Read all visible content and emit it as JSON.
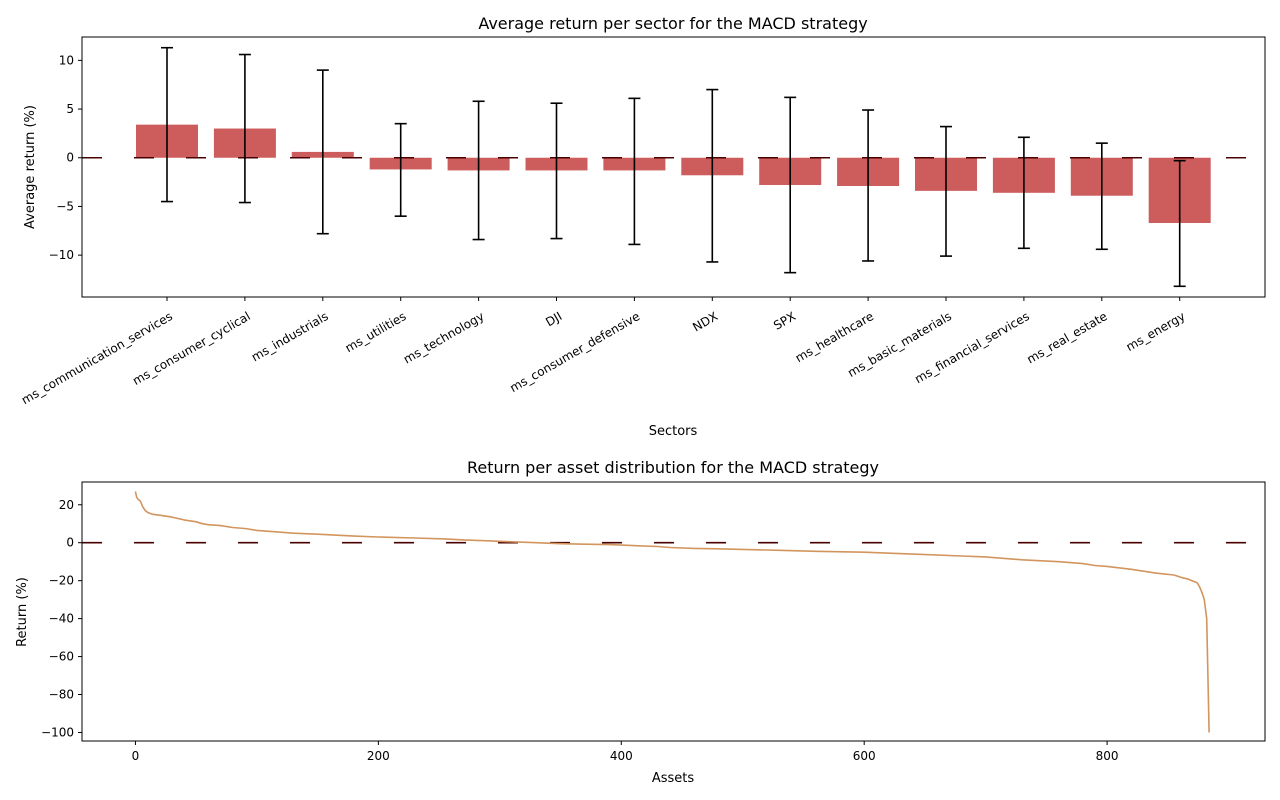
{
  "chart_data": [
    {
      "type": "bar",
      "title": "Average return per sector for the MACD strategy",
      "xlabel": "Sectors",
      "ylabel": "Average return (%)",
      "ylim": [
        -14.3,
        12.4
      ],
      "yticks": [
        -10,
        -5,
        0,
        5,
        10
      ],
      "categories": [
        "ms_communication_services",
        "ms_consumer_cyclical",
        "ms_industrials",
        "ms_utilities",
        "ms_technology",
        "DJI",
        "ms_consumer_defensive",
        "NDX",
        "SPX",
        "ms_healthcare",
        "ms_basic_materials",
        "ms_financial_services",
        "ms_real_estate",
        "ms_energy"
      ],
      "values": [
        3.4,
        3.0,
        0.6,
        -1.2,
        -1.3,
        -1.3,
        -1.3,
        -1.8,
        -2.8,
        -2.9,
        -3.4,
        -3.6,
        -3.9,
        -6.7
      ],
      "error_upper": [
        11.3,
        10.6,
        9.0,
        3.5,
        5.8,
        5.6,
        6.1,
        7.0,
        6.2,
        4.9,
        3.2,
        2.1,
        1.5,
        -0.3
      ],
      "error_lower": [
        -4.5,
        -4.6,
        -7.8,
        -6.0,
        -8.4,
        -8.3,
        -8.9,
        -10.7,
        -11.8,
        -10.6,
        -10.1,
        -9.3,
        -9.4,
        -13.2
      ],
      "reference_line": 0,
      "bar_color": "#cd5c5c",
      "line_color": "#4a0000"
    },
    {
      "type": "line",
      "title": "Return per asset distribution for the MACD strategy",
      "xlabel": "Assets",
      "ylabel": "Return (%)",
      "xlim": [
        -44,
        930
      ],
      "ylim": [
        -104.5,
        32
      ],
      "xticks": [
        0,
        200,
        400,
        600,
        800
      ],
      "yticks": [
        20,
        0,
        -20,
        -40,
        -60,
        -80,
        -100
      ],
      "reference_line": 0,
      "line_color": "#d2955e",
      "ref_color": "#4a0000",
      "x": [
        0,
        1,
        2,
        4,
        6,
        8,
        10,
        14,
        20,
        30,
        40,
        50,
        55,
        60,
        70,
        80,
        90,
        100,
        110,
        130,
        150,
        180,
        200,
        230,
        255,
        270,
        290,
        310,
        330,
        350,
        370,
        390,
        410,
        430,
        440,
        460,
        480,
        500,
        530,
        560,
        600,
        640,
        680,
        700,
        730,
        760,
        780,
        790,
        800,
        820,
        840,
        855,
        862,
        866,
        870,
        874,
        876,
        878,
        880,
        882,
        884
      ],
      "y": [
        27,
        24,
        23,
        22,
        19,
        17,
        16,
        15,
        14.5,
        13.5,
        12,
        11,
        10,
        9.5,
        9,
        8,
        7.5,
        6.5,
        6,
        5,
        4.5,
        3.5,
        3,
        2.5,
        2,
        1.5,
        1,
        0.5,
        0,
        -0.5,
        -0.8,
        -1,
        -1.5,
        -2,
        -2.5,
        -3,
        -3.2,
        -3.5,
        -4,
        -4.5,
        -5,
        -6,
        -7,
        -7.5,
        -9,
        -10,
        -11,
        -12,
        -12.5,
        -14,
        -16,
        -17,
        -18.5,
        -19,
        -20,
        -21,
        -23,
        -26,
        -30,
        -40,
        -100
      ]
    }
  ]
}
